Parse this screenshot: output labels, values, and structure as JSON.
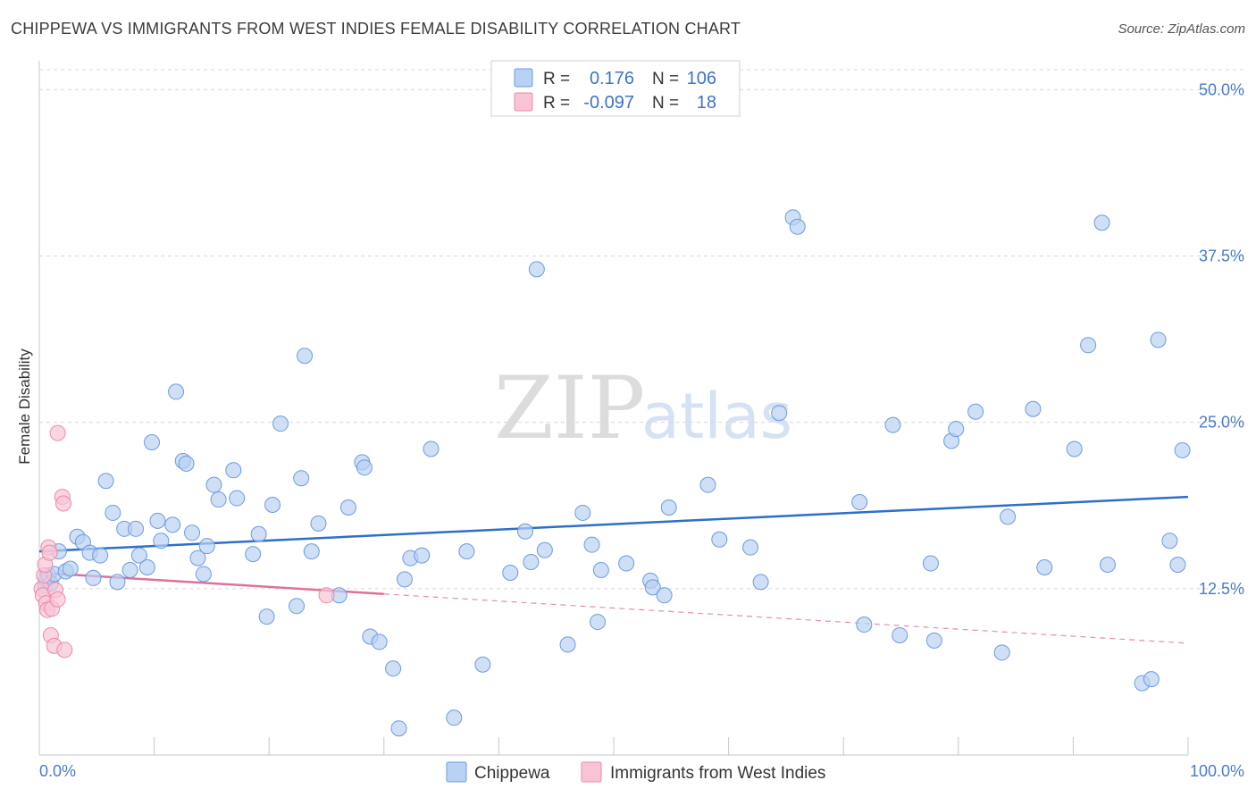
{
  "title": "CHIPPEWA VS IMMIGRANTS FROM WEST INDIES FEMALE DISABILITY CORRELATION CHART",
  "source": "Source: ZipAtlas.com",
  "watermark": {
    "zip": "ZIP",
    "atlas": "atlas"
  },
  "colors": {
    "chippewa_fill": "#b9d1f2",
    "chippewa_stroke": "#6d9be0",
    "chippewa_line": "#2d6fc9",
    "wi_fill": "#f8c4d5",
    "wi_stroke": "#e98aaa",
    "wi_line": "#e0709a",
    "grid": "#d8d8d8",
    "axis_label": "#4a7cc9"
  },
  "legend": {
    "rows": [
      {
        "r_label": "R =",
        "r_value": "0.176",
        "n_label": "N =",
        "n_value": "106"
      },
      {
        "r_label": "R =",
        "r_value": "-0.097",
        "n_label": "N =",
        "n_value": "18"
      }
    ]
  },
  "chart_data": {
    "type": "scatter",
    "ylabel": "Female Disability",
    "xlim": [
      0,
      100
    ],
    "ylim": [
      0,
      50
    ],
    "x_tick_labels": [
      "0.0%",
      "100.0%"
    ],
    "y_ticks": [
      12.5,
      25.0,
      37.5,
      50.0
    ],
    "y_tick_labels": [
      "12.5%",
      "25.0%",
      "37.5%",
      "50.0%"
    ],
    "grid": true,
    "legend_placement": "top-center",
    "series": [
      {
        "name": "Chippewa",
        "trend": {
          "x": [
            0,
            100
          ],
          "y": [
            15.3,
            19.4
          ]
        },
        "points": [
          [
            0.5,
            12.7
          ],
          [
            0.6,
            13.2
          ],
          [
            0.8,
            13.5
          ],
          [
            1.0,
            12.9
          ],
          [
            1.3,
            13.6
          ],
          [
            1.7,
            15.3
          ],
          [
            2.3,
            13.8
          ],
          [
            2.7,
            14.0
          ],
          [
            3.3,
            16.4
          ],
          [
            3.8,
            16.0
          ],
          [
            4.4,
            15.2
          ],
          [
            4.7,
            13.3
          ],
          [
            5.3,
            15.0
          ],
          [
            5.8,
            20.6
          ],
          [
            6.4,
            18.2
          ],
          [
            6.8,
            13.0
          ],
          [
            7.4,
            17.0
          ],
          [
            7.9,
            13.9
          ],
          [
            8.4,
            17.0
          ],
          [
            8.7,
            15.0
          ],
          [
            9.4,
            14.1
          ],
          [
            9.8,
            23.5
          ],
          [
            10.3,
            17.6
          ],
          [
            10.6,
            16.1
          ],
          [
            11.6,
            17.3
          ],
          [
            11.9,
            27.3
          ],
          [
            12.5,
            22.1
          ],
          [
            12.8,
            21.9
          ],
          [
            13.3,
            16.7
          ],
          [
            13.8,
            14.8
          ],
          [
            14.3,
            13.6
          ],
          [
            14.6,
            15.7
          ],
          [
            15.2,
            20.3
          ],
          [
            15.6,
            19.2
          ],
          [
            16.9,
            21.4
          ],
          [
            17.2,
            19.3
          ],
          [
            18.6,
            15.1
          ],
          [
            19.1,
            16.6
          ],
          [
            19.8,
            10.4
          ],
          [
            20.3,
            18.8
          ],
          [
            21.0,
            24.9
          ],
          [
            22.4,
            11.2
          ],
          [
            22.8,
            20.8
          ],
          [
            23.1,
            30.0
          ],
          [
            23.7,
            15.3
          ],
          [
            24.3,
            17.4
          ],
          [
            26.1,
            12.0
          ],
          [
            26.9,
            18.6
          ],
          [
            28.1,
            22.0
          ],
          [
            28.3,
            21.6
          ],
          [
            28.8,
            8.9
          ],
          [
            29.6,
            8.5
          ],
          [
            30.8,
            6.5
          ],
          [
            31.3,
            2.0
          ],
          [
            31.8,
            13.2
          ],
          [
            32.3,
            14.8
          ],
          [
            33.3,
            15.0
          ],
          [
            34.1,
            23.0
          ],
          [
            36.1,
            2.8
          ],
          [
            37.2,
            15.3
          ],
          [
            38.6,
            6.8
          ],
          [
            41.0,
            13.7
          ],
          [
            42.3,
            16.8
          ],
          [
            42.8,
            14.5
          ],
          [
            43.3,
            36.5
          ],
          [
            44.0,
            15.4
          ],
          [
            46.0,
            8.3
          ],
          [
            47.3,
            18.2
          ],
          [
            48.1,
            15.8
          ],
          [
            48.6,
            10.0
          ],
          [
            48.9,
            13.9
          ],
          [
            51.1,
            14.4
          ],
          [
            53.2,
            13.1
          ],
          [
            53.4,
            12.6
          ],
          [
            54.4,
            12.0
          ],
          [
            54.8,
            18.6
          ],
          [
            58.2,
            20.3
          ],
          [
            59.2,
            16.2
          ],
          [
            61.9,
            15.6
          ],
          [
            62.8,
            13.0
          ],
          [
            64.4,
            25.7
          ],
          [
            65.6,
            40.4
          ],
          [
            66.0,
            39.7
          ],
          [
            71.4,
            19.0
          ],
          [
            71.8,
            9.8
          ],
          [
            74.3,
            24.8
          ],
          [
            74.9,
            9.0
          ],
          [
            77.6,
            14.4
          ],
          [
            77.9,
            8.6
          ],
          [
            79.4,
            23.6
          ],
          [
            79.8,
            24.5
          ],
          [
            81.5,
            25.8
          ],
          [
            83.8,
            7.7
          ],
          [
            84.3,
            17.9
          ],
          [
            86.5,
            26.0
          ],
          [
            87.5,
            14.1
          ],
          [
            90.1,
            23.0
          ],
          [
            91.3,
            30.8
          ],
          [
            92.5,
            40.0
          ],
          [
            93.0,
            14.3
          ],
          [
            96.0,
            5.4
          ],
          [
            96.8,
            5.7
          ],
          [
            97.4,
            31.2
          ],
          [
            98.4,
            16.1
          ],
          [
            99.1,
            14.3
          ],
          [
            99.5,
            22.9
          ]
        ]
      },
      {
        "name": "Immigrants from West Indies",
        "trend": {
          "x": [
            0,
            30
          ],
          "y": [
            13.7,
            12.1
          ]
        },
        "trend_extension": {
          "x": [
            30,
            100
          ],
          "y": [
            12.1,
            8.4
          ]
        },
        "points": [
          [
            0.2,
            12.5
          ],
          [
            0.3,
            12.0
          ],
          [
            0.4,
            13.5
          ],
          [
            0.5,
            14.3
          ],
          [
            0.6,
            11.4
          ],
          [
            0.7,
            10.9
          ],
          [
            0.8,
            15.6
          ],
          [
            0.9,
            15.2
          ],
          [
            1.0,
            9.0
          ],
          [
            1.1,
            11.0
          ],
          [
            1.3,
            8.2
          ],
          [
            1.4,
            12.4
          ],
          [
            1.6,
            11.7
          ],
          [
            1.6,
            24.2
          ],
          [
            2.0,
            19.4
          ],
          [
            2.1,
            18.9
          ],
          [
            2.2,
            7.9
          ],
          [
            25.0,
            12.0
          ]
        ]
      }
    ]
  }
}
